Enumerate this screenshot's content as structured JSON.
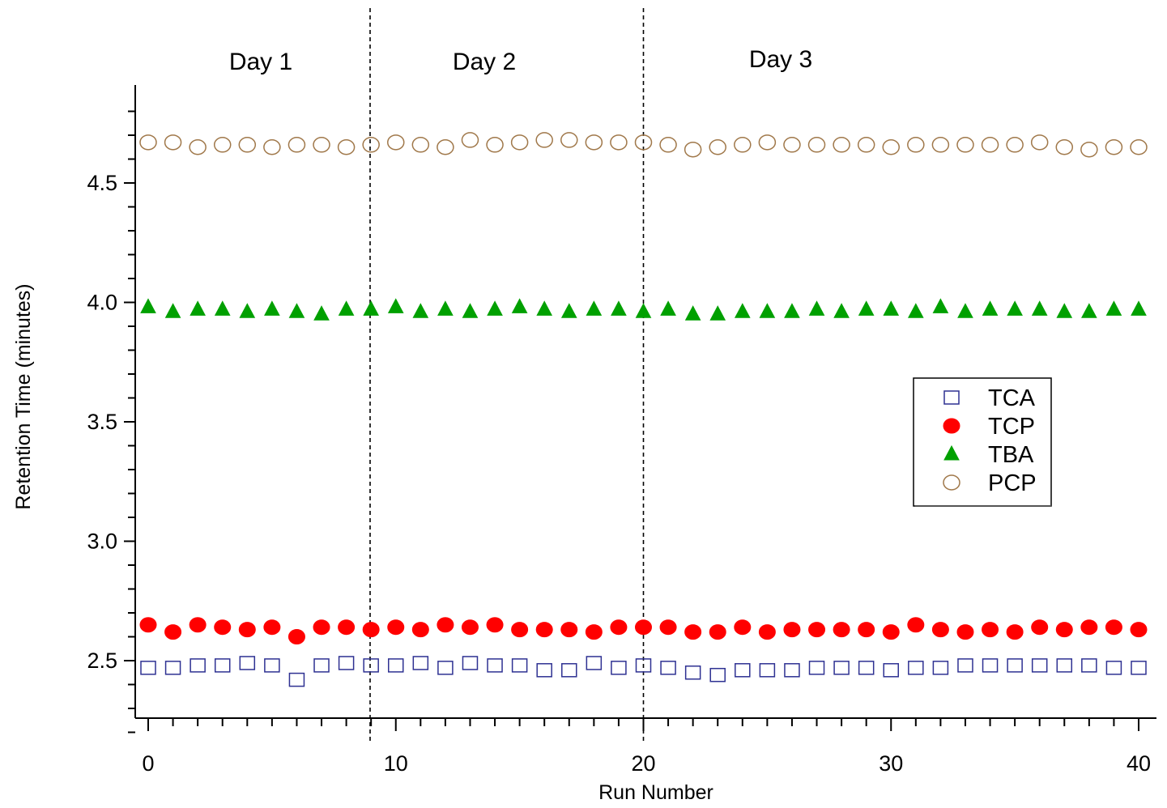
{
  "chart_data": {
    "type": "scatter",
    "xlabel": "Run Number",
    "ylabel": "Retention Time (minutes)",
    "xlim": [
      -0.5,
      41.5
    ],
    "ylim": [
      2.2,
      4.9
    ],
    "x_ticks": [
      0,
      10,
      20,
      30,
      40
    ],
    "x_tick_labels": [
      "0",
      "10",
      "20",
      "30",
      "40"
    ],
    "y_ticks": [
      2.5,
      3.0,
      3.5,
      4.0,
      4.5
    ],
    "y_tick_labels": [
      "2.5",
      "3.0",
      "3.5",
      "4.0",
      "4.5"
    ],
    "grid": false,
    "legend_position": "right-center",
    "day_dividers": [
      {
        "x": 9,
        "label": "Day 1"
      },
      {
        "x": 20,
        "label": "Day 2"
      }
    ],
    "day_labels": [
      {
        "label": "Day 1",
        "x_center": 4.5
      },
      {
        "label": "Day 2",
        "x_center": 13.5
      },
      {
        "label": "Day 3",
        "x_center": 25.5
      }
    ],
    "x": [
      0,
      1,
      2,
      3,
      4,
      5,
      6,
      7,
      8,
      9,
      10,
      11,
      12,
      13,
      14,
      15,
      16,
      17,
      18,
      19,
      20,
      21,
      22,
      23,
      24,
      25,
      26,
      27,
      28,
      29,
      30,
      31,
      32,
      33,
      34,
      35,
      36,
      37,
      38,
      39,
      40
    ],
    "series": [
      {
        "name": "TCA",
        "marker": "square-open",
        "color": "#2e3192",
        "values": [
          2.47,
          2.47,
          2.48,
          2.48,
          2.49,
          2.48,
          2.42,
          2.48,
          2.49,
          2.48,
          2.48,
          2.49,
          2.47,
          2.49,
          2.48,
          2.48,
          2.46,
          2.46,
          2.49,
          2.47,
          2.48,
          2.47,
          2.45,
          2.44,
          2.46,
          2.46,
          2.46,
          2.47,
          2.47,
          2.47,
          2.46,
          2.47,
          2.47,
          2.48,
          2.48,
          2.48,
          2.48,
          2.48,
          2.48,
          2.47,
          2.47
        ]
      },
      {
        "name": "TCP",
        "marker": "circle-filled",
        "color": "#ff0000",
        "values": [
          2.65,
          2.62,
          2.65,
          2.64,
          2.63,
          2.64,
          2.6,
          2.64,
          2.64,
          2.63,
          2.64,
          2.63,
          2.65,
          2.64,
          2.65,
          2.63,
          2.63,
          2.63,
          2.62,
          2.64,
          2.64,
          2.64,
          2.62,
          2.62,
          2.64,
          2.62,
          2.63,
          2.63,
          2.63,
          2.63,
          2.62,
          2.65,
          2.63,
          2.62,
          2.63,
          2.62,
          2.64,
          2.63,
          2.64,
          2.64,
          2.63
        ]
      },
      {
        "name": "TBA",
        "marker": "triangle-filled",
        "color": "#00a000",
        "values": [
          3.98,
          3.96,
          3.97,
          3.97,
          3.96,
          3.97,
          3.96,
          3.95,
          3.97,
          3.97,
          3.98,
          3.96,
          3.97,
          3.96,
          3.97,
          3.98,
          3.97,
          3.96,
          3.97,
          3.97,
          3.96,
          3.97,
          3.95,
          3.95,
          3.96,
          3.96,
          3.96,
          3.97,
          3.96,
          3.97,
          3.97,
          3.96,
          3.98,
          3.96,
          3.97,
          3.97,
          3.97,
          3.96,
          3.96,
          3.97,
          3.97
        ]
      },
      {
        "name": "PCP",
        "marker": "circle-open",
        "color": "#a0784a",
        "values": [
          4.67,
          4.67,
          4.65,
          4.66,
          4.66,
          4.65,
          4.66,
          4.66,
          4.65,
          4.66,
          4.67,
          4.66,
          4.65,
          4.68,
          4.66,
          4.67,
          4.68,
          4.68,
          4.67,
          4.67,
          4.67,
          4.66,
          4.64,
          4.65,
          4.66,
          4.67,
          4.66,
          4.66,
          4.66,
          4.66,
          4.65,
          4.66,
          4.66,
          4.66,
          4.66,
          4.66,
          4.67,
          4.65,
          4.64,
          4.65,
          4.65
        ]
      }
    ]
  }
}
